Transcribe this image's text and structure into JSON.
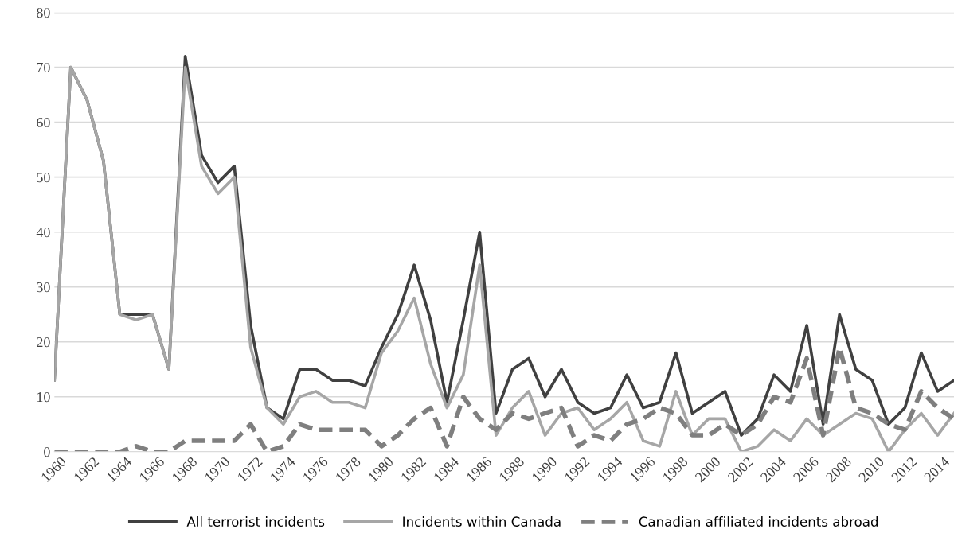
{
  "chart_data": {
    "type": "line",
    "x": [
      1960,
      1961,
      1962,
      1963,
      1964,
      1965,
      1966,
      1967,
      1968,
      1969,
      1970,
      1971,
      1972,
      1973,
      1974,
      1975,
      1976,
      1977,
      1978,
      1979,
      1980,
      1981,
      1982,
      1983,
      1984,
      1985,
      1986,
      1987,
      1988,
      1989,
      1990,
      1991,
      1992,
      1993,
      1994,
      1995,
      1996,
      1997,
      1998,
      1999,
      2000,
      2001,
      2002,
      2003,
      2004,
      2005,
      2006,
      2007,
      2008,
      2009,
      2010,
      2011,
      2012,
      2013,
      2014,
      2015
    ],
    "series": [
      {
        "name": "All terrorist incidents",
        "color": "#404040",
        "line_style": "solid",
        "values": [
          13,
          70,
          64,
          53,
          25,
          25,
          25,
          15,
          72,
          54,
          49,
          52,
          23,
          8,
          6,
          15,
          15,
          13,
          13,
          12,
          19,
          25,
          34,
          24,
          9,
          24,
          40,
          7,
          15,
          17,
          10,
          15,
          9,
          7,
          8,
          14,
          8,
          9,
          18,
          7,
          9,
          11,
          3,
          6,
          14,
          11,
          23,
          5,
          25,
          15,
          13,
          5,
          8,
          18,
          11,
          13
        ]
      },
      {
        "name": "Incidents within Canada",
        "color": "#a6a6a6",
        "line_style": "solid",
        "values": [
          13,
          70,
          64,
          53,
          25,
          24,
          25,
          15,
          70,
          52,
          47,
          50,
          19,
          8,
          5,
          10,
          11,
          9,
          9,
          8,
          18,
          22,
          28,
          16,
          8,
          14,
          34,
          3,
          8,
          11,
          3,
          7,
          8,
          4,
          6,
          9,
          2,
          1,
          11,
          3,
          6,
          6,
          0,
          1,
          4,
          2,
          6,
          3,
          5,
          7,
          6,
          0,
          4,
          7,
          3,
          7
        ]
      },
      {
        "name": "Canadian affiliated incidents abroad",
        "color": "#7f7f7f",
        "line_style": "dashed",
        "values": [
          0,
          0,
          0,
          0,
          0,
          1,
          0,
          0,
          2,
          2,
          2,
          2,
          5,
          0,
          1,
          5,
          4,
          4,
          4,
          4,
          1,
          3,
          6,
          8,
          1,
          10,
          6,
          4,
          7,
          6,
          7,
          8,
          1,
          3,
          2,
          5,
          6,
          8,
          7,
          3,
          3,
          5,
          3,
          5,
          10,
          9,
          17,
          3,
          19,
          8,
          7,
          5,
          4,
          11,
          8,
          6
        ]
      }
    ],
    "xlim": [
      1960,
      2015
    ],
    "xticks": [
      1960,
      1962,
      1964,
      1966,
      1968,
      1970,
      1972,
      1974,
      1976,
      1978,
      1980,
      1982,
      1984,
      1986,
      1988,
      1990,
      1992,
      1994,
      1996,
      1998,
      2000,
      2002,
      2004,
      2006,
      2008,
      2010,
      2012,
      2014
    ],
    "ylim": [
      0,
      80
    ],
    "yticks": [
      0,
      10,
      20,
      30,
      40,
      50,
      60,
      70,
      80
    ],
    "grid": "y",
    "legend": "bottom",
    "marker": "none"
  }
}
